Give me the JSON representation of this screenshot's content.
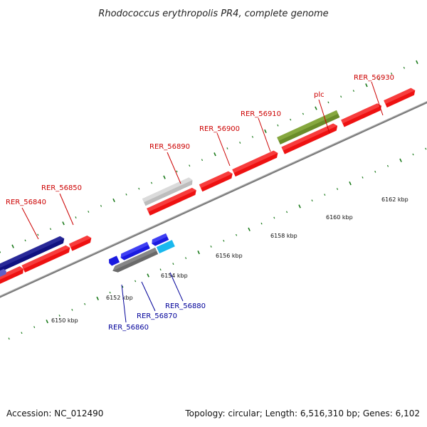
{
  "title": "Rhodococcus erythropolis PR4, complete genome",
  "footer": {
    "accession": "Accession: NC_012490",
    "summary": "Topology: circular; Length: 6,516,310 bp; Genes: 6,102"
  },
  "colors": {
    "forward_label": "#cc0000",
    "reverse_label": "#000099",
    "backbone": "#888888",
    "tick": "#1a7a1a"
  },
  "tick_labels": [
    "6150 kbp",
    "6152 kbp",
    "6154 kbp",
    "6156 kbp",
    "6158 kbp",
    "6160 kbp",
    "6162 kbp"
  ],
  "forward_labels": [
    "RER_56840",
    "RER_56850",
    "RER_56890",
    "RER_56900",
    "RER_56910",
    "plc",
    "RER_56930"
  ],
  "reverse_labels": [
    "RER_56860",
    "RER_56870",
    "RER_56880"
  ]
}
